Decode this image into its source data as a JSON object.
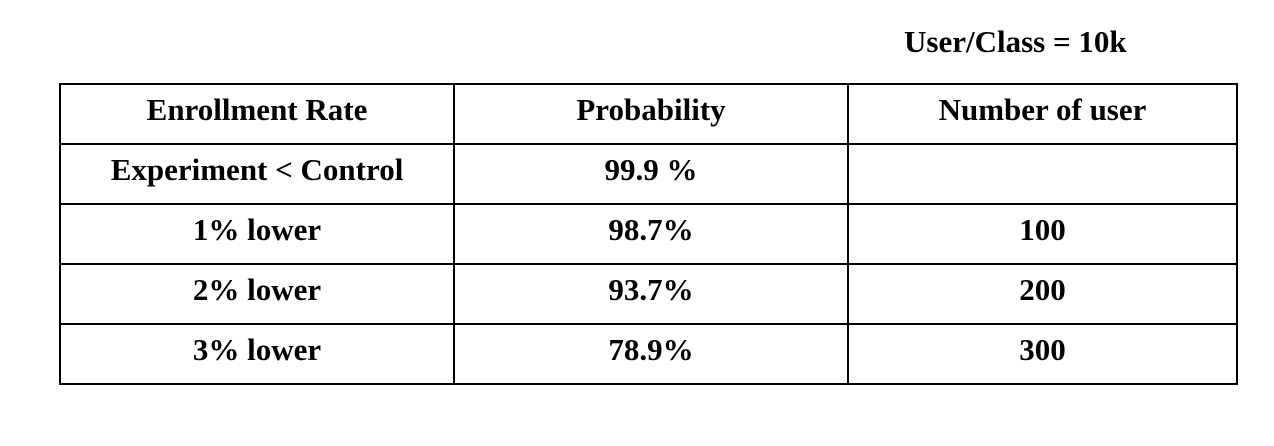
{
  "caption": "User/Class = 10k",
  "table": {
    "headers": [
      "Enrollment Rate",
      "Probability",
      "Number of user"
    ],
    "rows": [
      [
        "Experiment < Control",
        "99.9 %",
        ""
      ],
      [
        "1% lower",
        "98.7%",
        "100"
      ],
      [
        "2% lower",
        "93.7%",
        "200"
      ],
      [
        "3% lower",
        "78.9%",
        "300"
      ]
    ]
  }
}
